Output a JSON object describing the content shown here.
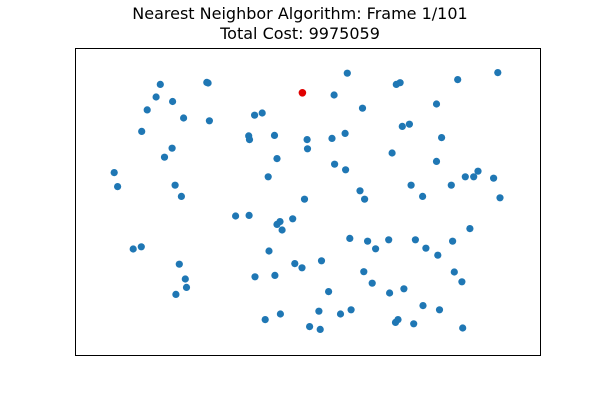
{
  "title": {
    "line1": "Nearest Neighbor Algorithm: Frame 1/101",
    "line2": "Total Cost: 9975059"
  },
  "chart_data": {
    "type": "scatter",
    "title": "Nearest Neighbor Algorithm: Frame 1/101",
    "subtitle": "Total Cost: 9975059",
    "xlabel": "",
    "ylabel": "",
    "axes_visible": false,
    "grid": false,
    "xlim": [
      0,
      1000
    ],
    "ylim": [
      0,
      1000
    ],
    "colors": {
      "unvisited": "#1f77b4",
      "current": "#e00000",
      "frame": "#000000"
    },
    "current_point": {
      "x": 488,
      "y": 890
    },
    "points": [
      {
        "x": 152,
        "y": 920
      },
      {
        "x": 262,
        "y": 927
      },
      {
        "x": 265,
        "y": 925
      },
      {
        "x": 594,
        "y": 960
      },
      {
        "x": 710,
        "y": 920
      },
      {
        "x": 719,
        "y": 926
      },
      {
        "x": 855,
        "y": 937
      },
      {
        "x": 950,
        "y": 962
      },
      {
        "x": 142,
        "y": 875
      },
      {
        "x": 181,
        "y": 859
      },
      {
        "x": 121,
        "y": 829
      },
      {
        "x": 207,
        "y": 800
      },
      {
        "x": 268,
        "y": 790
      },
      {
        "x": 375,
        "y": 810
      },
      {
        "x": 393,
        "y": 818
      },
      {
        "x": 563,
        "y": 882
      },
      {
        "x": 630,
        "y": 835
      },
      {
        "x": 805,
        "y": 850
      },
      {
        "x": 108,
        "y": 752
      },
      {
        "x": 180,
        "y": 692
      },
      {
        "x": 162,
        "y": 660
      },
      {
        "x": 361,
        "y": 736
      },
      {
        "x": 363,
        "y": 723
      },
      {
        "x": 422,
        "y": 738
      },
      {
        "x": 499,
        "y": 723
      },
      {
        "x": 500,
        "y": 690
      },
      {
        "x": 558,
        "y": 727
      },
      {
        "x": 589,
        "y": 745
      },
      {
        "x": 724,
        "y": 770
      },
      {
        "x": 741,
        "y": 778
      },
      {
        "x": 817,
        "y": 730
      },
      {
        "x": 700,
        "y": 675
      },
      {
        "x": 805,
        "y": 645
      },
      {
        "x": 43,
        "y": 605
      },
      {
        "x": 51,
        "y": 555
      },
      {
        "x": 187,
        "y": 560
      },
      {
        "x": 202,
        "y": 520
      },
      {
        "x": 428,
        "y": 655
      },
      {
        "x": 407,
        "y": 590
      },
      {
        "x": 564,
        "y": 635
      },
      {
        "x": 590,
        "y": 615
      },
      {
        "x": 624,
        "y": 540
      },
      {
        "x": 635,
        "y": 510
      },
      {
        "x": 745,
        "y": 560
      },
      {
        "x": 772,
        "y": 520
      },
      {
        "x": 840,
        "y": 560
      },
      {
        "x": 873,
        "y": 590
      },
      {
        "x": 893,
        "y": 590
      },
      {
        "x": 903,
        "y": 610
      },
      {
        "x": 940,
        "y": 585
      },
      {
        "x": 955,
        "y": 515
      },
      {
        "x": 330,
        "y": 450
      },
      {
        "x": 362,
        "y": 452
      },
      {
        "x": 440,
        "y": 400
      },
      {
        "x": 428,
        "y": 420
      },
      {
        "x": 435,
        "y": 430
      },
      {
        "x": 465,
        "y": 440
      },
      {
        "x": 493,
        "y": 510
      },
      {
        "x": 88,
        "y": 332
      },
      {
        "x": 107,
        "y": 340
      },
      {
        "x": 197,
        "y": 278
      },
      {
        "x": 211,
        "y": 225
      },
      {
        "x": 214,
        "y": 195
      },
      {
        "x": 189,
        "y": 170
      },
      {
        "x": 409,
        "y": 325
      },
      {
        "x": 376,
        "y": 233
      },
      {
        "x": 423,
        "y": 238
      },
      {
        "x": 470,
        "y": 280
      },
      {
        "x": 487,
        "y": 265
      },
      {
        "x": 533,
        "y": 290
      },
      {
        "x": 600,
        "y": 370
      },
      {
        "x": 642,
        "y": 360
      },
      {
        "x": 661,
        "y": 333
      },
      {
        "x": 692,
        "y": 365
      },
      {
        "x": 755,
        "y": 365
      },
      {
        "x": 780,
        "y": 335
      },
      {
        "x": 808,
        "y": 310
      },
      {
        "x": 843,
        "y": 360
      },
      {
        "x": 884,
        "y": 405
      },
      {
        "x": 633,
        "y": 251
      },
      {
        "x": 653,
        "y": 210
      },
      {
        "x": 694,
        "y": 175
      },
      {
        "x": 728,
        "y": 190
      },
      {
        "x": 847,
        "y": 250
      },
      {
        "x": 865,
        "y": 215
      },
      {
        "x": 550,
        "y": 180
      },
      {
        "x": 400,
        "y": 80
      },
      {
        "x": 436,
        "y": 100
      },
      {
        "x": 527,
        "y": 110
      },
      {
        "x": 578,
        "y": 100
      },
      {
        "x": 603,
        "y": 115
      },
      {
        "x": 708,
        "y": 70
      },
      {
        "x": 714,
        "y": 80
      },
      {
        "x": 751,
        "y": 65
      },
      {
        "x": 773,
        "y": 130
      },
      {
        "x": 812,
        "y": 115
      },
      {
        "x": 867,
        "y": 50
      },
      {
        "x": 505,
        "y": 55
      },
      {
        "x": 530,
        "y": 45
      }
    ]
  }
}
